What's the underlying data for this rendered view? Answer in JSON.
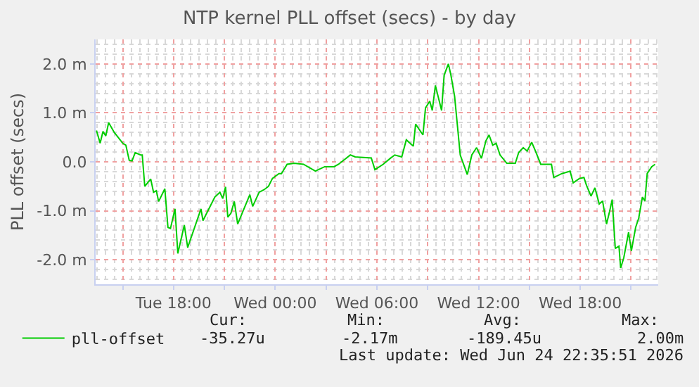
{
  "chart_data": {
    "type": "line",
    "title": "NTP kernel PLL offset (secs) - by day",
    "ylabel": "PLL offset (secs)",
    "x": [
      "2026-06-23T13:27",
      "2026-06-23T13:40",
      "2026-06-23T13:50",
      "2026-06-23T14:00",
      "2026-06-23T14:10",
      "2026-06-23T14:30",
      "2026-06-23T15:00",
      "2026-06-23T15:11",
      "2026-06-23T15:23",
      "2026-06-23T15:33",
      "2026-06-23T15:44",
      "2026-06-23T16:03",
      "2026-06-23T16:09",
      "2026-06-23T16:18",
      "2026-06-23T16:39",
      "2026-06-23T16:49",
      "2026-06-23T16:59",
      "2026-06-23T17:07",
      "2026-06-23T17:29",
      "2026-06-23T17:40",
      "2026-06-23T17:49",
      "2026-06-23T18:05",
      "2026-06-23T18:15",
      "2026-06-23T18:38",
      "2026-06-23T18:50",
      "2026-06-23T19:37",
      "2026-06-23T19:44",
      "2026-06-23T20:26",
      "2026-06-23T20:44",
      "2026-06-23T20:54",
      "2026-06-23T21:04",
      "2026-06-23T21:12",
      "2026-06-23T21:23",
      "2026-06-23T21:35",
      "2026-06-23T21:47",
      "2026-06-23T22:30",
      "2026-06-23T22:40",
      "2026-06-23T23:03",
      "2026-06-23T23:20",
      "2026-06-23T23:36",
      "2026-06-23T23:50",
      "2026-06-24T00:13",
      "2026-06-24T00:22",
      "2026-06-24T00:42",
      "2026-06-24T01:07",
      "2026-06-24T01:40",
      "2026-06-24T02:22",
      "2026-06-24T02:55",
      "2026-06-24T03:28",
      "2026-06-24T03:44",
      "2026-06-24T04:26",
      "2026-06-24T04:43",
      "2026-06-24T05:40",
      "2026-06-24T05:53",
      "2026-06-24T06:22",
      "2026-06-24T06:47",
      "2026-06-24T07:03",
      "2026-06-24T07:28",
      "2026-06-24T07:44",
      "2026-06-24T08:09",
      "2026-06-24T08:17",
      "2026-06-24T08:43",
      "2026-06-24T08:52",
      "2026-06-24T09:07",
      "2026-06-24T09:16",
      "2026-06-24T09:27",
      "2026-06-24T09:49",
      "2026-06-24T09:58",
      "2026-06-24T10:13",
      "2026-06-24T10:22",
      "2026-06-24T10:35",
      "2026-06-24T10:55",
      "2026-06-24T11:20",
      "2026-06-24T11:36",
      "2026-06-24T11:53",
      "2026-06-24T12:10",
      "2026-06-24T12:26",
      "2026-06-24T12:37",
      "2026-06-24T12:50",
      "2026-06-24T13:02",
      "2026-06-24T13:16",
      "2026-06-24T13:40",
      "2026-06-24T14:10",
      "2026-06-24T14:22",
      "2026-06-24T14:38",
      "2026-06-24T14:52",
      "2026-06-24T15:08",
      "2026-06-24T15:20",
      "2026-06-24T15:40",
      "2026-06-24T16:18",
      "2026-06-24T16:26",
      "2026-06-24T16:55",
      "2026-06-24T17:24",
      "2026-06-24T17:35",
      "2026-06-24T17:57",
      "2026-06-24T18:13",
      "2026-06-24T18:22",
      "2026-06-24T18:38",
      "2026-06-24T18:52",
      "2026-06-24T19:07",
      "2026-06-24T19:19",
      "2026-06-24T19:33",
      "2026-06-24T19:44",
      "2026-06-24T19:53",
      "2026-06-24T20:04",
      "2026-06-24T20:17",
      "2026-06-24T20:23",
      "2026-06-24T20:34",
      "2026-06-24T20:51",
      "2026-06-24T21:01",
      "2026-06-24T21:16",
      "2026-06-24T21:27",
      "2026-06-24T21:40",
      "2026-06-24T21:49",
      "2026-06-24T21:57",
      "2026-06-24T22:13",
      "2026-06-24T22:25"
    ],
    "series": [
      {
        "name": "pll-offset",
        "color": "#00cc00",
        "values": [
          0.64,
          0.38,
          0.62,
          0.53,
          0.8,
          0.6,
          0.38,
          0.34,
          0.03,
          0.02,
          0.19,
          0.14,
          0.14,
          -0.5,
          -0.35,
          -0.62,
          -0.59,
          -0.81,
          -0.55,
          -1.34,
          -1.36,
          -0.96,
          -1.87,
          -1.29,
          -1.75,
          -0.96,
          -1.2,
          -0.72,
          -0.62,
          -0.75,
          -0.51,
          -1.13,
          -1.05,
          -0.81,
          -1.27,
          -0.67,
          -0.91,
          -0.62,
          -0.57,
          -0.5,
          -0.34,
          -0.24,
          -0.24,
          -0.05,
          -0.03,
          -0.05,
          -0.19,
          -0.1,
          -0.1,
          -0.05,
          0.14,
          0.1,
          0.08,
          -0.16,
          -0.05,
          0.07,
          0.14,
          0.1,
          0.45,
          0.32,
          0.77,
          0.55,
          1.1,
          1.24,
          1.05,
          1.56,
          1.05,
          1.77,
          2.0,
          1.77,
          1.34,
          0.14,
          -0.26,
          0.14,
          0.29,
          0.07,
          0.43,
          0.55,
          0.34,
          0.38,
          0.14,
          -0.03,
          -0.03,
          0.19,
          0.29,
          0.22,
          0.4,
          0.24,
          -0.05,
          -0.05,
          -0.32,
          -0.24,
          -0.19,
          -0.43,
          -0.34,
          -0.32,
          -0.48,
          -0.7,
          -0.53,
          -0.86,
          -0.8,
          -1.27,
          -1.01,
          -0.77,
          -1.77,
          -1.72,
          -2.17,
          -1.96,
          -1.44,
          -1.82,
          -1.34,
          -1.15,
          -0.72,
          -0.8,
          -0.24,
          -0.1,
          -0.05
        ]
      }
    ],
    "xlim": [
      "2026-06-23T13:24",
      "2026-06-24T22:36"
    ],
    "xticks": [
      {
        "value": "2026-06-23T15:00",
        "label": null
      },
      {
        "value": "2026-06-23T18:00",
        "label": "Tue 18:00"
      },
      {
        "value": "2026-06-23T21:00",
        "label": null
      },
      {
        "value": "2026-06-24T00:00",
        "label": "Wed 00:00"
      },
      {
        "value": "2026-06-24T03:00",
        "label": null
      },
      {
        "value": "2026-06-24T06:00",
        "label": "Wed 06:00"
      },
      {
        "value": "2026-06-24T09:00",
        "label": null
      },
      {
        "value": "2026-06-24T12:00",
        "label": "Wed 12:00"
      },
      {
        "value": "2026-06-24T15:00",
        "label": null
      },
      {
        "value": "2026-06-24T18:00",
        "label": "Wed 18:00"
      },
      {
        "value": "2026-06-24T21:00",
        "label": null
      }
    ],
    "ylim": [
      -2.5,
      2.5
    ],
    "yticks": [
      {
        "value": -2.0,
        "label": "-2.0 m"
      },
      {
        "value": -1.0,
        "label": "-1.0 m"
      },
      {
        "value": 0,
        "label": "0.0"
      },
      {
        "value": 1.0,
        "label": "1.0 m"
      },
      {
        "value": 2.0,
        "label": "2.0 m"
      }
    ],
    "grid": true,
    "legend": "bottom left",
    "marker": "none",
    "line_style": "solid",
    "annotations": [
      "Cur:",
      "Min:",
      "Avg:",
      "Max:",
      "-35.27u",
      "-2.17m",
      "-189.45u",
      "2.00m",
      "Last update: Wed Jun 24 22:35:51 2026"
    ]
  }
}
